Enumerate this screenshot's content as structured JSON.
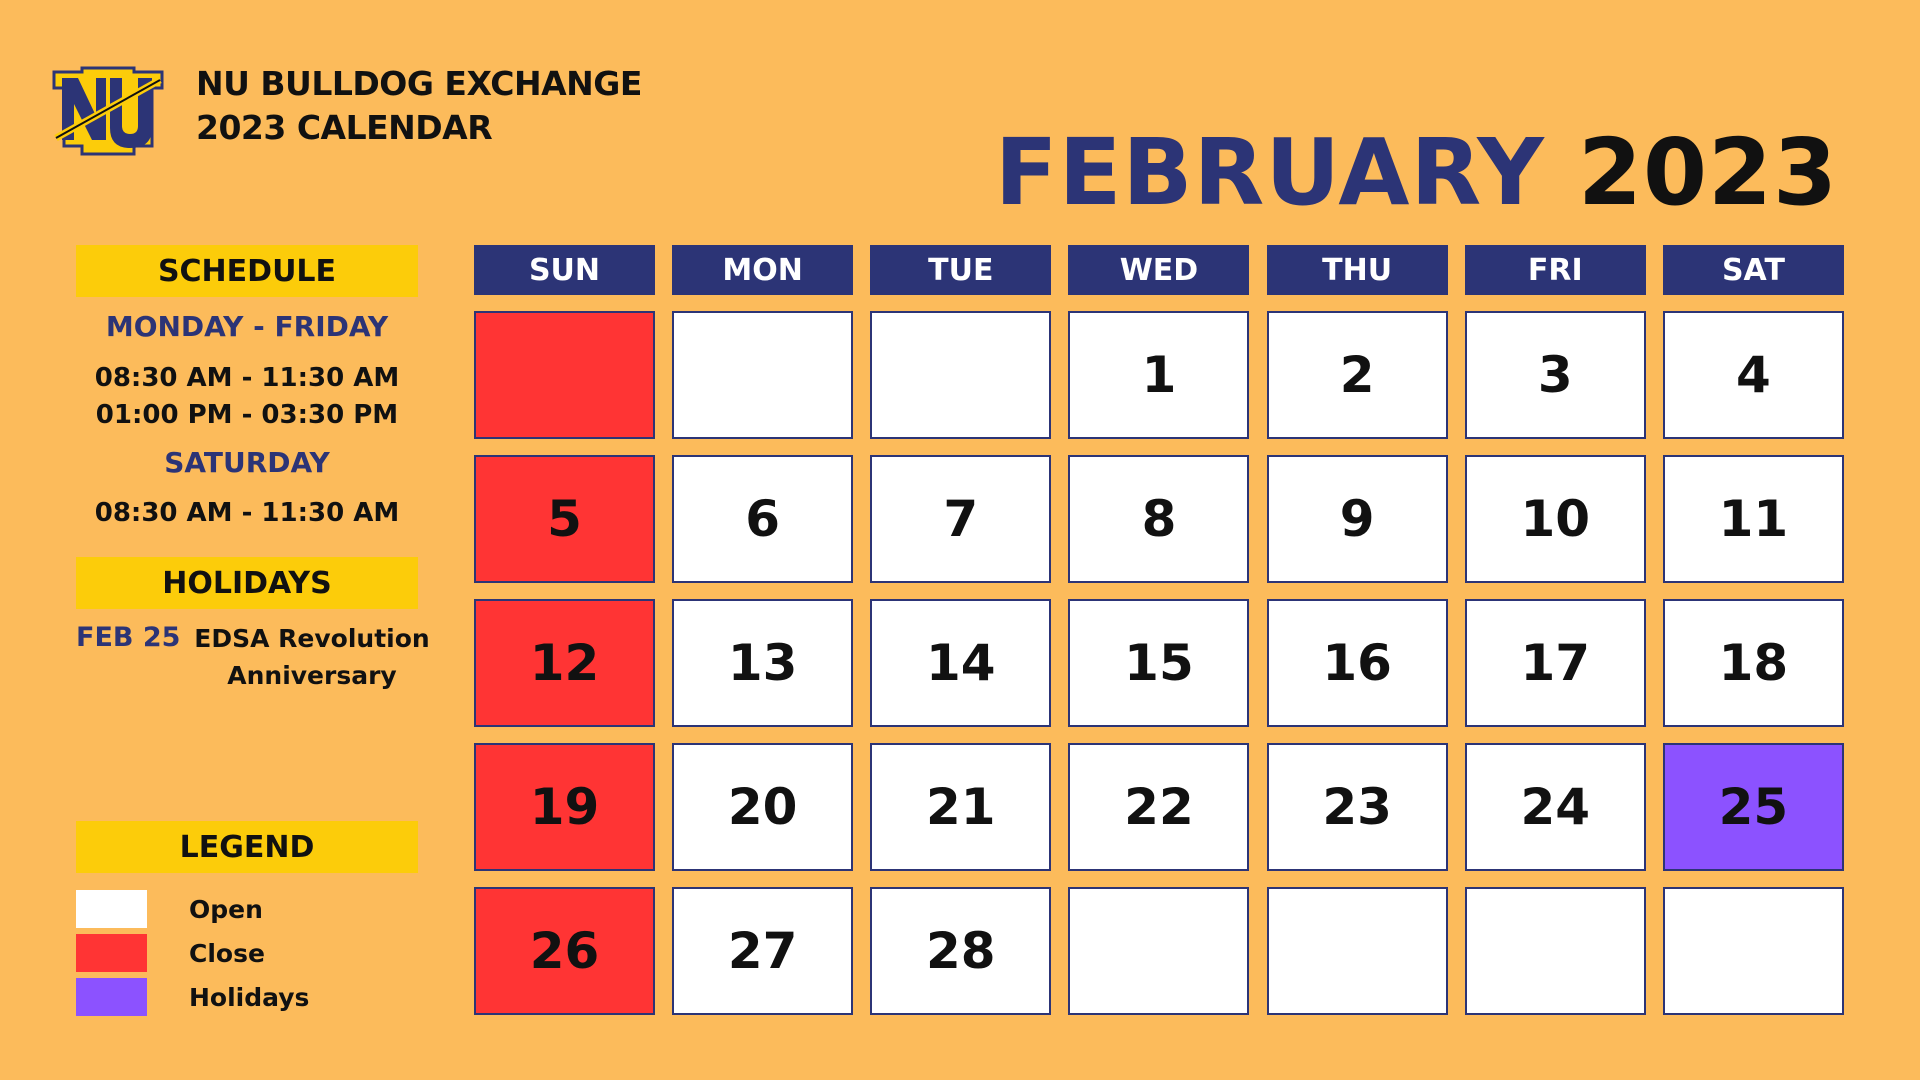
{
  "brand": {
    "line1": "NU BULLDOG EXCHANGE",
    "line2": "2023 CALENDAR"
  },
  "title": {
    "month": "FEBRUARY",
    "year": "2023"
  },
  "colors": {
    "navy": "#2c3476",
    "background": "#fcbb5b",
    "pill": "#fccc0a",
    "open": "#ffffff",
    "close": "#ff3434",
    "holiday": "#8c52ff"
  },
  "schedule": {
    "heading": "SCHEDULE",
    "weekday_label": "MONDAY - FRIDAY",
    "weekday_morning": "08:30 AM - 11:30 AM",
    "weekday_afternoon": "01:00 PM - 03:30 PM",
    "saturday_label": "SATURDAY",
    "saturday_morning": "08:30 AM - 11:30 AM"
  },
  "holidays": {
    "heading": "HOLIDAYS",
    "items": [
      {
        "date": "FEB 25",
        "name_line1": "EDSA Revolution",
        "name_line2": "Anniversary"
      }
    ]
  },
  "legend": {
    "heading": "LEGEND",
    "items": [
      {
        "label": "Open",
        "status": "open"
      },
      {
        "label": "Close",
        "status": "close"
      },
      {
        "label": "Holidays",
        "status": "holiday"
      }
    ]
  },
  "calendar": {
    "days": [
      "SUN",
      "MON",
      "TUE",
      "WED",
      "THU",
      "FRI",
      "SAT"
    ],
    "weeks": [
      [
        {
          "day": "",
          "status": "close"
        },
        {
          "day": "",
          "status": "open"
        },
        {
          "day": "",
          "status": "open"
        },
        {
          "day": "1",
          "status": "open"
        },
        {
          "day": "2",
          "status": "open"
        },
        {
          "day": "3",
          "status": "open"
        },
        {
          "day": "4",
          "status": "open"
        }
      ],
      [
        {
          "day": "5",
          "status": "close"
        },
        {
          "day": "6",
          "status": "open"
        },
        {
          "day": "7",
          "status": "open"
        },
        {
          "day": "8",
          "status": "open"
        },
        {
          "day": "9",
          "status": "open"
        },
        {
          "day": "10",
          "status": "open"
        },
        {
          "day": "11",
          "status": "open"
        }
      ],
      [
        {
          "day": "12",
          "status": "close"
        },
        {
          "day": "13",
          "status": "open"
        },
        {
          "day": "14",
          "status": "open"
        },
        {
          "day": "15",
          "status": "open"
        },
        {
          "day": "16",
          "status": "open"
        },
        {
          "day": "17",
          "status": "open"
        },
        {
          "day": "18",
          "status": "open"
        }
      ],
      [
        {
          "day": "19",
          "status": "close"
        },
        {
          "day": "20",
          "status": "open"
        },
        {
          "day": "21",
          "status": "open"
        },
        {
          "day": "22",
          "status": "open"
        },
        {
          "day": "23",
          "status": "open"
        },
        {
          "day": "24",
          "status": "open"
        },
        {
          "day": "25",
          "status": "holiday"
        }
      ],
      [
        {
          "day": "26",
          "status": "close"
        },
        {
          "day": "27",
          "status": "open"
        },
        {
          "day": "28",
          "status": "open"
        },
        {
          "day": "",
          "status": "open"
        },
        {
          "day": "",
          "status": "open"
        },
        {
          "day": "",
          "status": "open"
        },
        {
          "day": "",
          "status": "open"
        }
      ]
    ]
  }
}
